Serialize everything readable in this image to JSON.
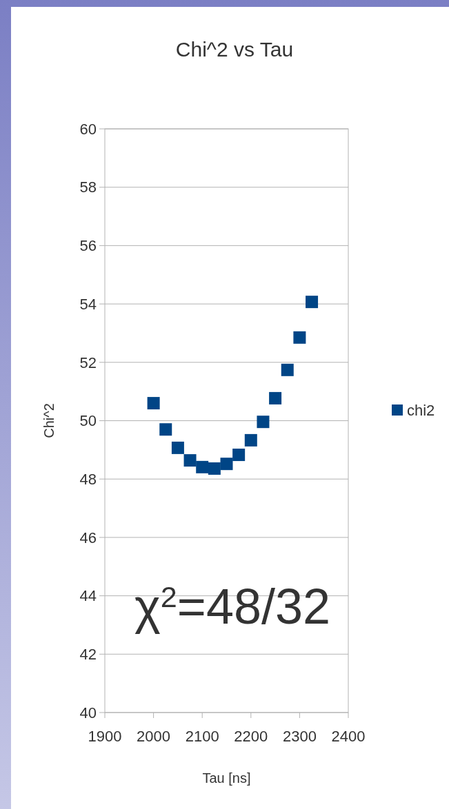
{
  "chart_data": {
    "type": "scatter",
    "title": "Chi^2 vs Tau",
    "xlabel": "Tau [ns]",
    "ylabel": "Chi^2",
    "x": [
      2000,
      2025,
      2050,
      2075,
      2100,
      2125,
      2150,
      2175,
      2200,
      2225,
      2250,
      2275,
      2300,
      2325
    ],
    "series": [
      {
        "name": "chi2",
        "color": "#004586",
        "values": [
          50.6,
          49.7,
          49.07,
          48.64,
          48.41,
          48.36,
          48.52,
          48.83,
          49.33,
          49.96,
          50.77,
          51.74,
          52.85,
          54.07
        ]
      }
    ],
    "xlim": [
      1900,
      2400
    ],
    "xticks": [
      1900,
      2000,
      2100,
      2200,
      2300,
      2400
    ],
    "ylim": [
      40,
      60
    ],
    "yticks": [
      40,
      42,
      44,
      46,
      48,
      50,
      52,
      54,
      56,
      58,
      60
    ],
    "grid": "y",
    "legend": "right",
    "marker": "square",
    "annotations": [
      "χ$^{2}$=48/32"
    ]
  }
}
